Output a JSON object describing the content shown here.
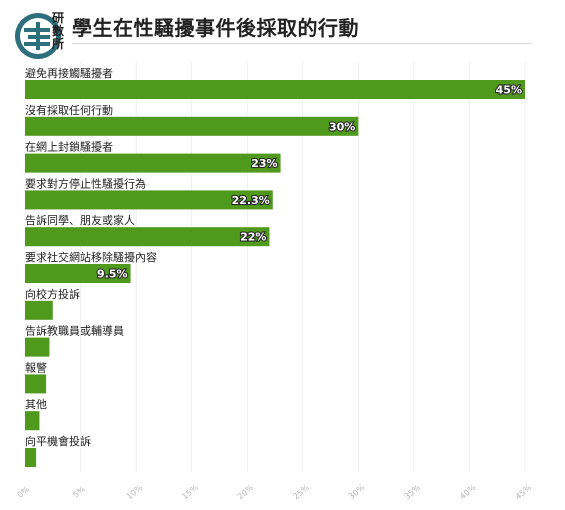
{
  "header": {
    "logo_text": "研數所",
    "title": "學生在性騷擾事件後採取的行動"
  },
  "colors": {
    "bar": "#4f9a1c",
    "label_stroke": "#2b2b2b",
    "grid": "#e6e6e6"
  },
  "chart_data": {
    "type": "bar",
    "orientation": "horizontal",
    "title": "學生在性騷擾事件後採取的行動",
    "categories": [
      "避免再接觸騷擾者",
      "沒有採取任何行動",
      "在網上封鎖騷擾者",
      "要求對方停止性騷擾行為",
      "告訴同學、朋友或家人",
      "要求社交網站移除騷擾內容",
      "向校方投訴",
      "告訴教職員或輔導員",
      "報警",
      "其他",
      "向平機會投訴"
    ],
    "values": [
      45,
      30,
      23,
      22.3,
      22,
      9.5,
      2.5,
      2.2,
      1.9,
      1.3,
      1.0
    ],
    "data_labels": [
      "45%",
      "30%",
      "23%",
      "22.3%",
      "22%",
      "9.5%",
      "",
      "",
      "",
      "",
      ""
    ],
    "xlim": [
      0,
      45
    ],
    "xticks": [
      "0%",
      "5%",
      "10%",
      "15%",
      "20%",
      "25%",
      "30%",
      "35%",
      "40%",
      "45%"
    ],
    "xlabel": "",
    "ylabel": ""
  }
}
